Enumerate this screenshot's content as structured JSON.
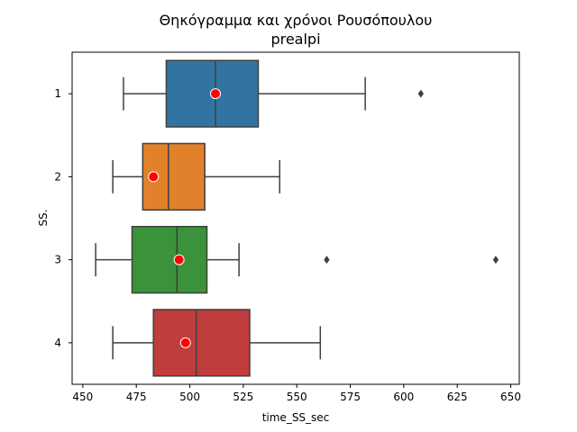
{
  "chart_data": {
    "type": "boxplot",
    "title": "Θηκόγραμμα και χρόνοι Ρουσόπουλου",
    "subtitle": "prealpi",
    "xlabel": "time_SS_sec",
    "ylabel": "SS.",
    "xlim": [
      445,
      654
    ],
    "xticks": [
      450,
      475,
      500,
      525,
      550,
      575,
      600,
      625,
      650
    ],
    "orientation": "horizontal",
    "grid": false,
    "categories": [
      "1",
      "2",
      "3",
      "4"
    ],
    "boxes": [
      {
        "category": "1",
        "whisker_low": 469,
        "q1": 489,
        "median": 512,
        "q3": 532,
        "whisker_high": 582,
        "outliers": [
          608
        ],
        "marker": 512,
        "color": "#3274a1"
      },
      {
        "category": "2",
        "whisker_low": 464,
        "q1": 478,
        "median": 490,
        "q3": 507,
        "whisker_high": 542,
        "outliers": [],
        "marker": 483,
        "color": "#e1812c"
      },
      {
        "category": "3",
        "whisker_low": 456,
        "q1": 473,
        "median": 494,
        "q3": 508,
        "whisker_high": 523,
        "outliers": [
          564,
          643
        ],
        "marker": 495,
        "color": "#3a923a"
      },
      {
        "category": "4",
        "whisker_low": 464,
        "q1": 483,
        "median": 503,
        "q3": 528,
        "whisker_high": 561,
        "outliers": [],
        "marker": 498,
        "color": "#c03d3e"
      }
    ],
    "marker_color": "#ff0000"
  }
}
